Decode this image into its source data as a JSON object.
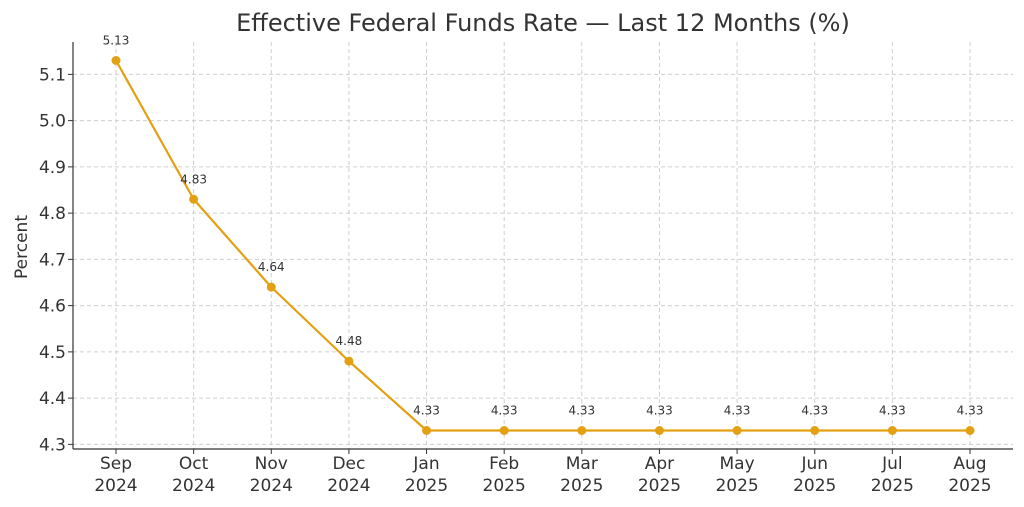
{
  "chart_data": {
    "type": "line",
    "title": "Effective Federal Funds Rate — Last 12 Months (%)",
    "xlabel": "",
    "ylabel": "Percent",
    "categories": [
      [
        "Sep",
        "2024"
      ],
      [
        "Oct",
        "2024"
      ],
      [
        "Nov",
        "2024"
      ],
      [
        "Dec",
        "2024"
      ],
      [
        "Jan",
        "2025"
      ],
      [
        "Feb",
        "2025"
      ],
      [
        "Mar",
        "2025"
      ],
      [
        "Apr",
        "2025"
      ],
      [
        "May",
        "2025"
      ],
      [
        "Jun",
        "2025"
      ],
      [
        "Jul",
        "2025"
      ],
      [
        "Aug",
        "2025"
      ]
    ],
    "values": [
      5.13,
      4.83,
      4.64,
      4.48,
      4.33,
      4.33,
      4.33,
      4.33,
      4.33,
      4.33,
      4.33,
      4.33
    ],
    "data_labels": [
      "5.13",
      "4.83",
      "4.64",
      "4.48",
      "4.33",
      "4.33",
      "4.33",
      "4.33",
      "4.33",
      "4.33",
      "4.33",
      "4.33"
    ],
    "yticks": [
      4.3,
      4.4,
      4.5,
      4.6,
      4.7,
      4.8,
      4.9,
      5.0,
      5.1
    ],
    "ytick_labels": [
      "4.3",
      "4.4",
      "4.5",
      "4.6",
      "4.7",
      "4.8",
      "4.9",
      "5.0",
      "5.1"
    ],
    "ylim": [
      4.29,
      5.17
    ],
    "grid": true,
    "line_color": "#e3a012",
    "grid_color": "#cfcfcf",
    "text_color": "#333333"
  }
}
